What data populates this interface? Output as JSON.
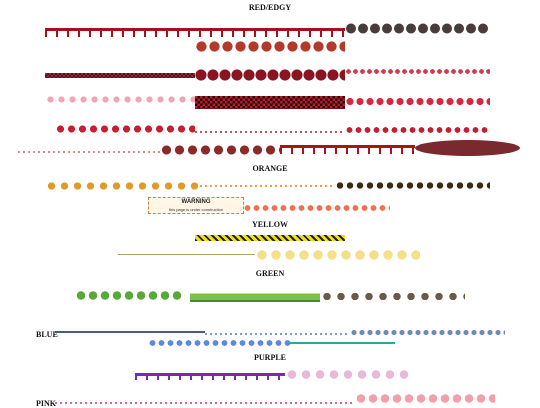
{
  "sections": [
    "RED/EDGY",
    "ORANGE",
    "YELLOW",
    "GREEN",
    "BLUE",
    "PURPLE",
    "PINK"
  ],
  "warning": {
    "title": "WARNING",
    "text": "this page is under construction"
  }
}
